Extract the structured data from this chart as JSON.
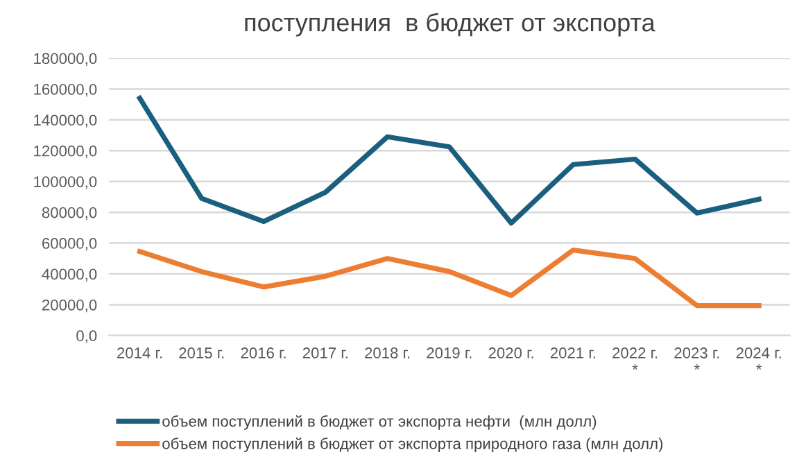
{
  "chart_data": {
    "type": "line",
    "title": "поступления  в бюджет от экспорта",
    "categories": [
      "2014 г.",
      "2015 г.",
      "2016 г.",
      "2017 г.",
      "2018 г.",
      "2019 г.",
      "2020 г.",
      "2021 г.",
      "2022 г.\n*",
      "2023 г.\n*",
      "2024 г.\n*"
    ],
    "series": [
      {
        "name": "объем поступлений в бюджет от экспорта нефти  (млн долл)",
        "color": "#1b5f7f",
        "values": [
          154000,
          89000,
          74000,
          93000,
          129000,
          122500,
          73000,
          111000,
          114500,
          79500,
          88500
        ]
      },
      {
        "name": "объем поступлений в бюджет от экспорта природного газа (млн долл)",
        "color": "#ed7d31",
        "values": [
          54500,
          41500,
          31500,
          38500,
          50000,
          41500,
          26000,
          55500,
          50000,
          19500,
          19500
        ]
      }
    ],
    "ylim": [
      0,
      180000
    ],
    "yticks": [
      {
        "value": 0,
        "label": "0,0"
      },
      {
        "value": 20000,
        "label": "20000,0"
      },
      {
        "value": 40000,
        "label": "40000,0"
      },
      {
        "value": 60000,
        "label": "60000,0"
      },
      {
        "value": 80000,
        "label": "80000,0"
      },
      {
        "value": 100000,
        "label": "100000,0"
      },
      {
        "value": 120000,
        "label": "120000,0"
      },
      {
        "value": 140000,
        "label": "140000,0"
      },
      {
        "value": 160000,
        "label": "160000,0"
      },
      {
        "value": 180000,
        "label": "180000,0"
      }
    ],
    "grid": "y",
    "legend": "bottom",
    "marker": "none",
    "line_style": "solid"
  }
}
